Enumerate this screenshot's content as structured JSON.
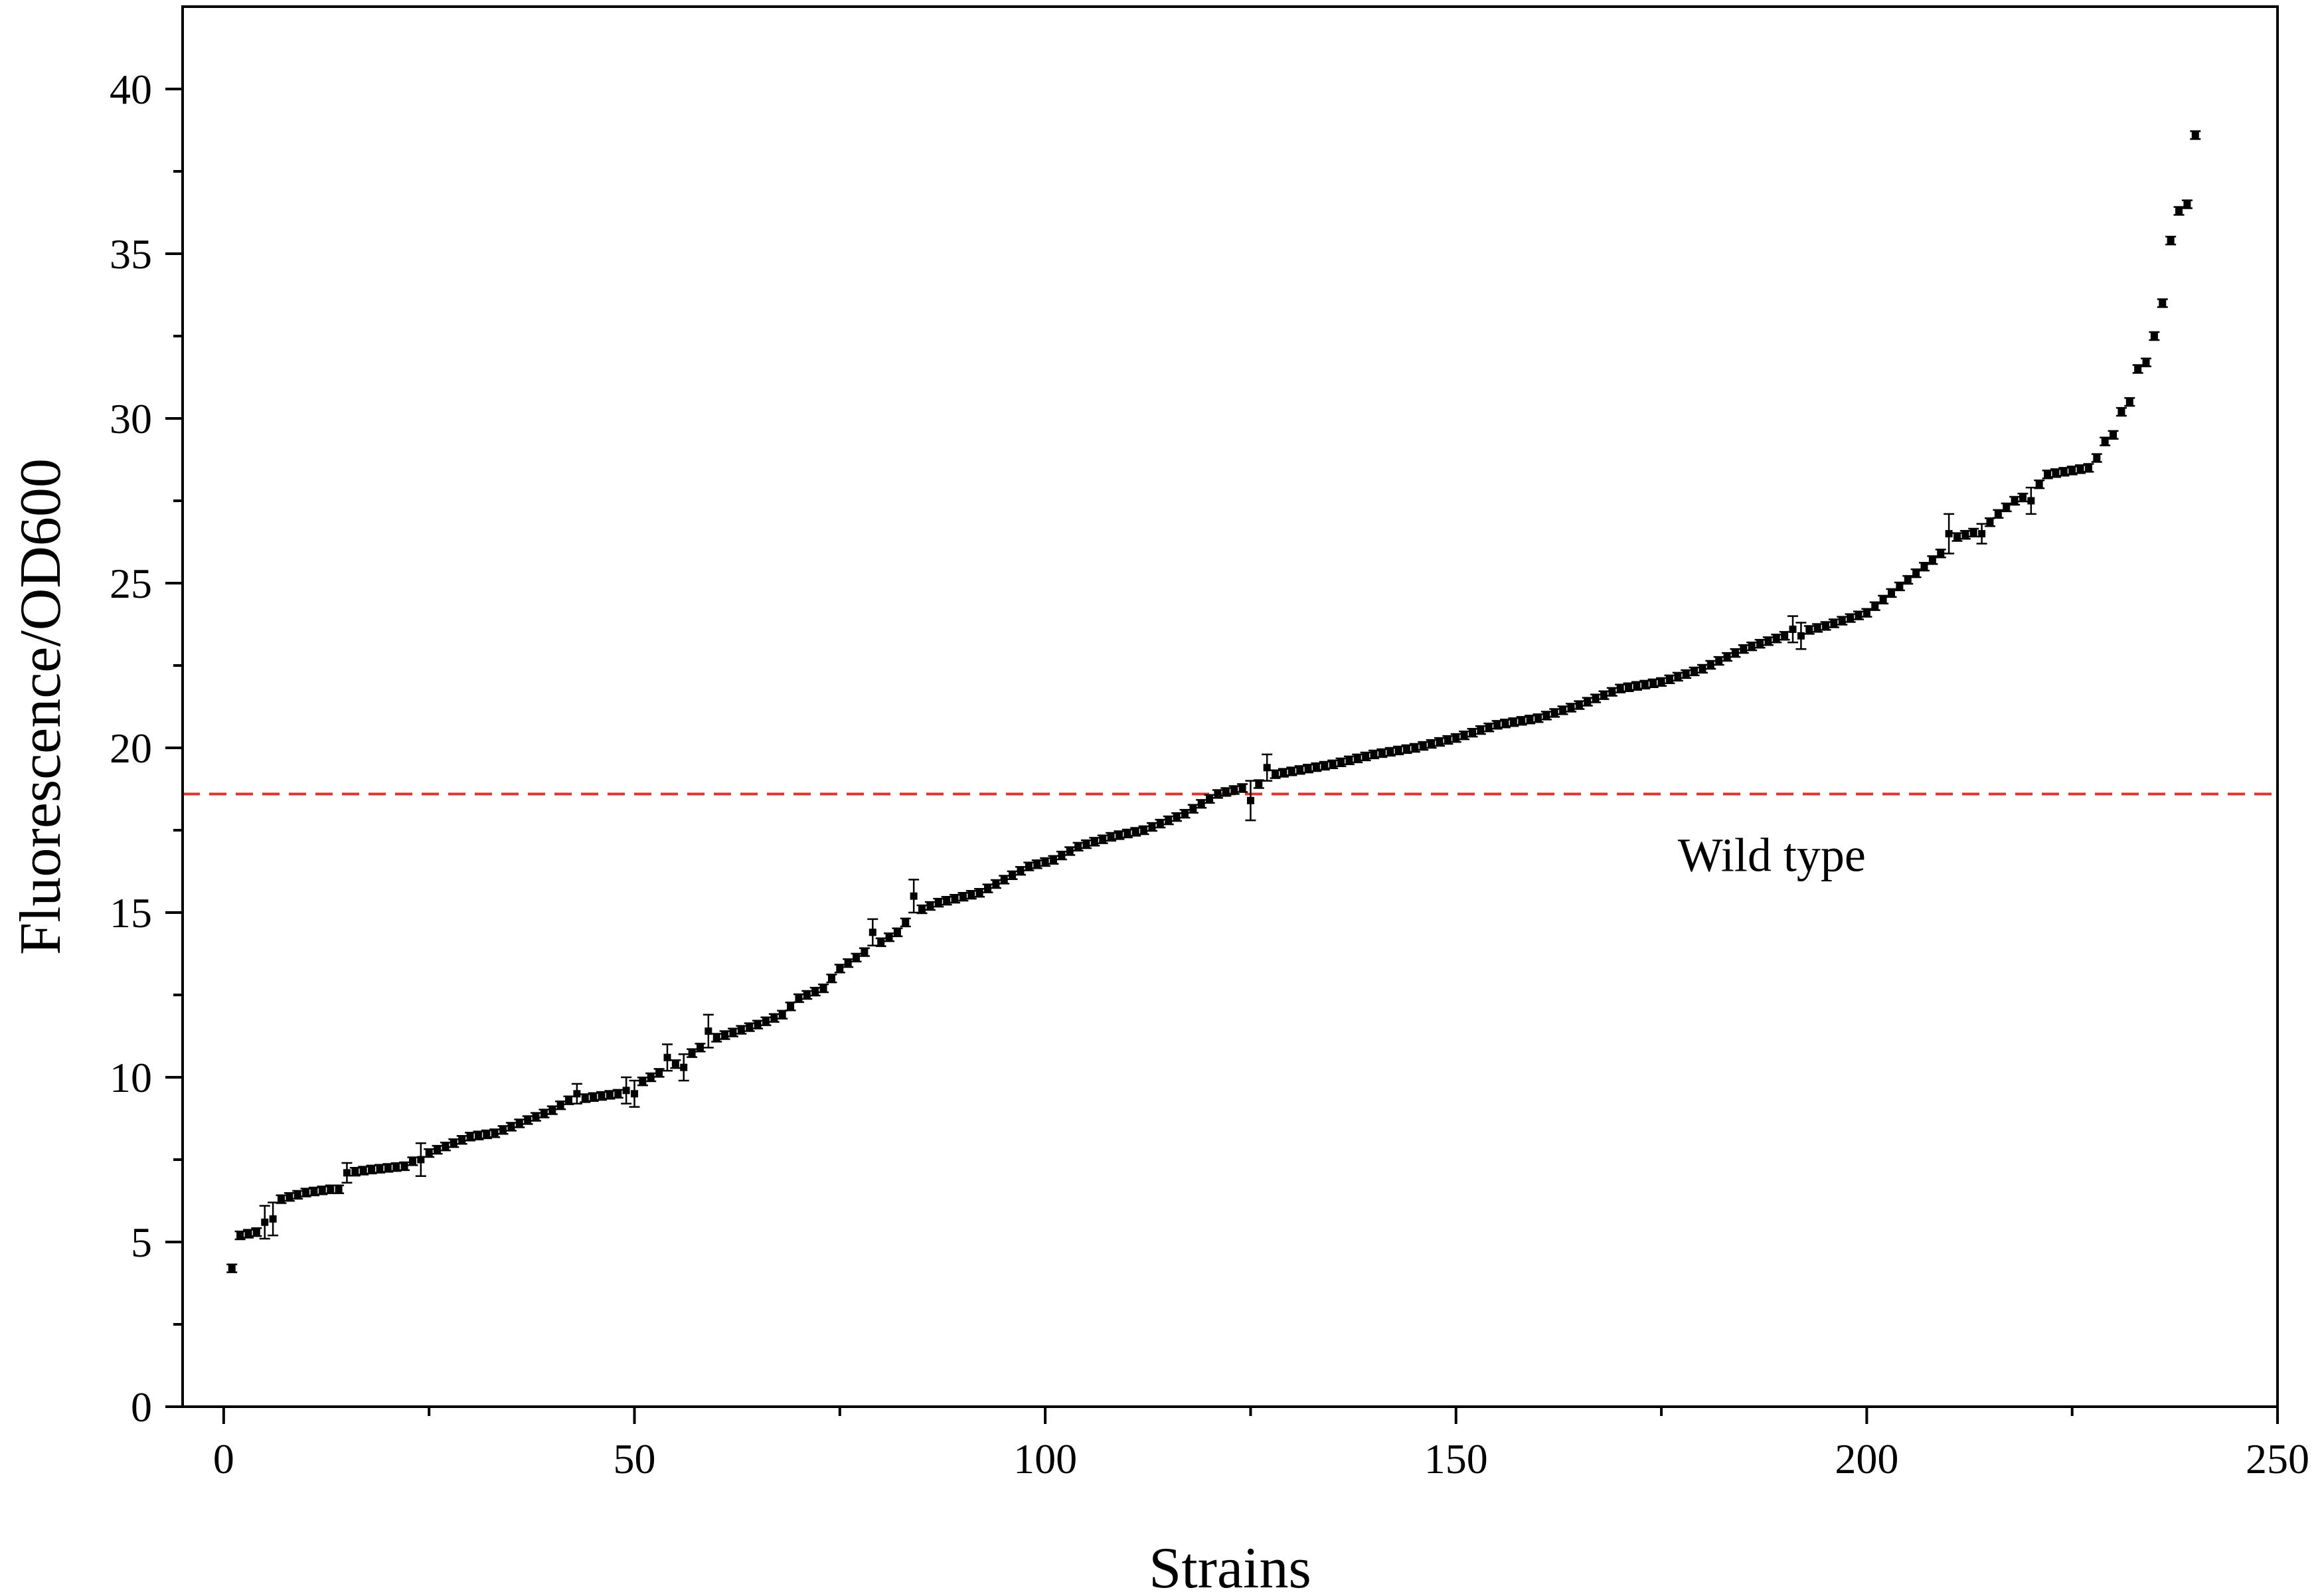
{
  "chart_data": {
    "type": "scatter",
    "title": "",
    "xlabel": "Strains",
    "ylabel": "Fluorescence/OD600",
    "xlim": [
      -5,
      250
    ],
    "ylim": [
      0,
      42.5
    ],
    "x_ticks": [
      0,
      50,
      100,
      150,
      200,
      250
    ],
    "y_ticks": [
      0,
      5,
      10,
      15,
      20,
      25,
      30,
      35,
      40
    ],
    "grid": false,
    "legend": "none",
    "marker_color": "#000000",
    "errorbar_color": "#000000",
    "reference_line": {
      "label": "Wild type",
      "y": 18.6,
      "color": "#e8302a",
      "style": "dashed"
    },
    "anchor_points": [
      [
        1,
        4.2
      ],
      [
        2,
        5.2
      ],
      [
        4,
        5.3
      ],
      [
        5,
        5.6
      ],
      [
        6,
        5.7
      ],
      [
        7,
        6.3
      ],
      [
        10,
        6.5
      ],
      [
        13,
        6.6
      ],
      [
        14,
        6.6
      ],
      [
        15,
        7.1
      ],
      [
        18,
        7.2
      ],
      [
        22,
        7.3
      ],
      [
        24,
        7.6
      ],
      [
        25,
        7.7
      ],
      [
        27,
        7.9
      ],
      [
        30,
        8.2
      ],
      [
        33,
        8.3
      ],
      [
        36,
        8.6
      ],
      [
        40,
        9.0
      ],
      [
        42,
        9.3
      ],
      [
        48,
        9.5
      ],
      [
        52,
        10.0
      ],
      [
        55,
        10.4
      ],
      [
        58,
        10.9
      ],
      [
        60,
        11.2
      ],
      [
        65,
        11.6
      ],
      [
        68,
        11.9
      ],
      [
        70,
        12.4
      ],
      [
        73,
        12.7
      ],
      [
        75,
        13.3
      ],
      [
        78,
        13.8
      ],
      [
        80,
        14.1
      ],
      [
        82,
        14.4
      ],
      [
        84,
        15.0
      ],
      [
        87,
        15.3
      ],
      [
        92,
        15.6
      ],
      [
        95,
        16.0
      ],
      [
        98,
        16.4
      ],
      [
        101,
        16.6
      ],
      [
        104,
        17.0
      ],
      [
        108,
        17.3
      ],
      [
        112,
        17.5
      ],
      [
        117,
        18.0
      ],
      [
        121,
        18.6
      ],
      [
        126,
        18.9
      ],
      [
        128,
        19.2
      ],
      [
        135,
        19.5
      ],
      [
        140,
        19.8
      ],
      [
        145,
        20.0
      ],
      [
        150,
        20.3
      ],
      [
        155,
        20.7
      ],
      [
        160,
        20.9
      ],
      [
        165,
        21.3
      ],
      [
        170,
        21.8
      ],
      [
        175,
        22.0
      ],
      [
        180,
        22.4
      ],
      [
        185,
        23.0
      ],
      [
        190,
        23.4
      ],
      [
        195,
        23.7
      ],
      [
        200,
        24.1
      ],
      [
        203,
        24.7
      ],
      [
        206,
        25.3
      ],
      [
        209,
        25.9
      ],
      [
        211,
        26.4
      ],
      [
        214,
        26.6
      ],
      [
        216,
        27.1
      ],
      [
        218,
        27.5
      ],
      [
        220,
        27.7
      ],
      [
        222,
        28.3
      ],
      [
        227,
        28.5
      ],
      [
        228,
        28.8
      ],
      [
        229,
        29.3
      ],
      [
        230,
        29.5
      ],
      [
        231,
        30.2
      ],
      [
        232,
        30.5
      ],
      [
        233,
        31.5
      ],
      [
        234,
        31.7
      ],
      [
        235,
        32.5
      ],
      [
        236,
        33.5
      ],
      [
        237,
        35.4
      ],
      [
        238,
        36.3
      ],
      [
        239,
        36.5
      ],
      [
        240,
        38.6
      ]
    ],
    "large_error_points": [
      [
        5,
        5.6,
        0.5
      ],
      [
        6,
        5.7,
        0.5
      ],
      [
        15,
        7.1,
        0.3
      ],
      [
        24,
        7.5,
        0.5
      ],
      [
        43,
        9.5,
        0.3
      ],
      [
        49,
        9.6,
        0.4
      ],
      [
        50,
        9.5,
        0.4
      ],
      [
        54,
        10.6,
        0.4
      ],
      [
        56,
        10.3,
        0.4
      ],
      [
        59,
        11.4,
        0.5
      ],
      [
        79,
        14.4,
        0.4
      ],
      [
        84,
        15.5,
        0.5
      ],
      [
        125,
        18.4,
        0.6
      ],
      [
        127,
        19.4,
        0.4
      ],
      [
        191,
        23.6,
        0.4
      ],
      [
        192,
        23.4,
        0.4
      ],
      [
        210,
        26.5,
        0.6
      ],
      [
        214,
        26.5,
        0.3
      ],
      [
        220,
        27.5,
        0.4
      ]
    ],
    "point_count": 240,
    "default_error": 0.12
  }
}
